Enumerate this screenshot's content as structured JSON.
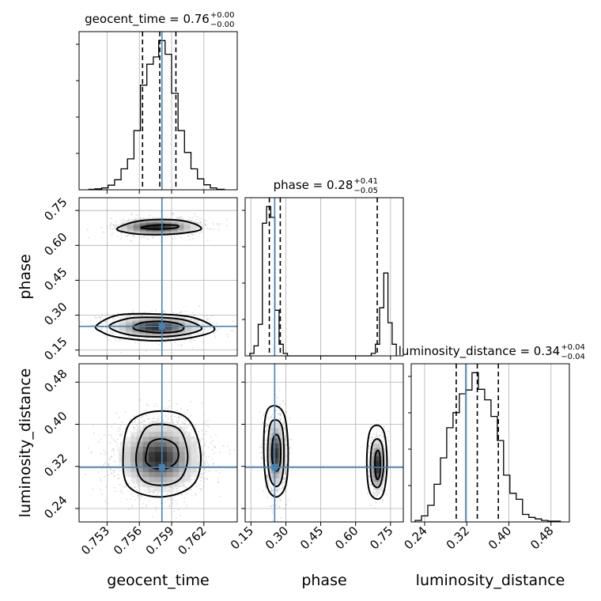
{
  "chart_data": {
    "type": "corner",
    "parameters": [
      "geocent_time",
      "phase",
      "luminosity_distance"
    ],
    "truth_color": "#4682b4",
    "ticks": {
      "geocent_time": [
        "0.753",
        "0.756",
        "0.759",
        "0.762"
      ],
      "phase": [
        "0.15",
        "0.30",
        "0.45",
        "0.60",
        "0.75"
      ],
      "luminosity_distance": [
        "0.24",
        "0.32",
        "0.40",
        "0.48"
      ]
    },
    "ranges": {
      "geocent_time": [
        0.7504,
        0.7651
      ],
      "phase": [
        0.125,
        0.805
      ],
      "luminosity_distance": [
        0.2145,
        0.5149
      ]
    },
    "truths": {
      "geocent_time": 0.7581,
      "phase": 0.252,
      "luminosity_distance": 0.318
    },
    "quantiles": {
      "geocent_time": [
        0.7563,
        0.7579,
        0.7594
      ],
      "phase": [
        0.229,
        0.276,
        0.693
      ],
      "luminosity_distance": [
        0.3,
        0.34,
        0.38
      ]
    },
    "titles": [
      {
        "param": "geocent_time",
        "name": "geocent_time",
        "value": "0.76",
        "plus": "+0.00",
        "minus": "−0.00"
      },
      {
        "param": "phase",
        "name": "phase",
        "value": "0.28",
        "plus": "+0.41",
        "minus": "−0.05"
      },
      {
        "param": "luminosity_distance",
        "name": "luminosity_distance",
        "value": "0.34",
        "plus": "+0.04",
        "minus": "−0.04"
      }
    ],
    "histograms": {
      "geocent_time": {
        "edges": [
          0.7513,
          0.7519,
          0.7525,
          0.7531,
          0.7537,
          0.7543,
          0.7549,
          0.7555,
          0.7561,
          0.7567,
          0.7573,
          0.7578,
          0.7584,
          0.759,
          0.7596,
          0.7602,
          0.7608,
          0.7614,
          0.762,
          0.7626,
          0.7632,
          0.7639
        ],
        "counts": [
          1,
          2,
          4,
          10,
          22,
          46,
          68,
          130,
          230,
          276,
          292,
          328,
          298,
          212,
          130,
          82,
          46,
          24,
          11,
          4,
          1
        ]
      },
      "phase": {
        "edges": [
          0.145,
          0.163,
          0.181,
          0.199,
          0.217,
          0.235,
          0.253,
          0.271,
          0.289,
          0.307,
          0.325,
          0.343,
          0.361,
          0.379,
          0.397,
          0.415,
          0.433,
          0.451,
          0.469,
          0.487,
          0.505,
          0.523,
          0.541,
          0.559,
          0.577,
          0.595,
          0.613,
          0.631,
          0.649,
          0.667,
          0.685,
          0.703,
          0.721,
          0.739,
          0.757,
          0.775
        ],
        "counts": [
          3,
          12,
          38,
          160,
          180,
          167,
          55,
          14,
          3,
          0,
          0,
          0,
          0,
          0,
          0,
          0,
          0,
          0,
          0,
          0,
          0,
          0,
          0,
          0,
          0,
          0,
          0,
          0,
          0,
          3,
          14,
          58,
          100,
          40,
          14
        ]
      },
      "luminosity_distance": {
        "edges": [
          0.222,
          0.234,
          0.246,
          0.258,
          0.27,
          0.282,
          0.294,
          0.306,
          0.318,
          0.33,
          0.342,
          0.354,
          0.366,
          0.378,
          0.39,
          0.402,
          0.414,
          0.426,
          0.438,
          0.45,
          0.462,
          0.474,
          0.486,
          0.498
        ],
        "counts": [
          2,
          8,
          22,
          50,
          85,
          125,
          145,
          170,
          175,
          198,
          176,
          162,
          140,
          108,
          62,
          38,
          30,
          10,
          6,
          4,
          2,
          1,
          1
        ]
      }
    },
    "scatter_2d": [
      {
        "x": "geocent_time",
        "y": "phase",
        "blobs": [
          {
            "cx": 0.7578,
            "cy": 0.25,
            "sx": 0.0023,
            "sy": 0.028,
            "rho": -0.15,
            "n": 1400
          },
          {
            "cx": 0.7578,
            "cy": 0.68,
            "sx": 0.0022,
            "sy": 0.022,
            "rho": 0.1,
            "n": 600
          }
        ],
        "contours": [
          [
            [
              0.752,
              0.255
            ],
            [
              0.754,
              0.3
            ],
            [
              0.7575,
              0.305
            ],
            [
              0.761,
              0.29
            ],
            [
              0.763,
              0.24
            ],
            [
              0.761,
              0.205
            ],
            [
              0.7575,
              0.19
            ],
            [
              0.754,
              0.205
            ],
            [
              0.7525,
              0.228
            ]
          ],
          [
            [
              0.7532,
              0.252
            ],
            [
              0.755,
              0.286
            ],
            [
              0.7578,
              0.29
            ],
            [
              0.7603,
              0.278
            ],
            [
              0.7618,
              0.242
            ],
            [
              0.76,
              0.215
            ],
            [
              0.7575,
              0.207
            ],
            [
              0.7548,
              0.218
            ]
          ],
          [
            [
              0.7555,
              0.252
            ],
            [
              0.7565,
              0.27
            ],
            [
              0.7585,
              0.272
            ],
            [
              0.76,
              0.256
            ],
            [
              0.7598,
              0.232
            ],
            [
              0.7578,
              0.224
            ],
            [
              0.7558,
              0.236
            ]
          ],
          [
            [
              0.754,
              0.675
            ],
            [
              0.756,
              0.705
            ],
            [
              0.759,
              0.71
            ],
            [
              0.761,
              0.695
            ],
            [
              0.7617,
              0.668
            ],
            [
              0.7595,
              0.65
            ],
            [
              0.7565,
              0.647
            ],
            [
              0.7545,
              0.658
            ]
          ],
          [
            [
              0.7563,
              0.679
            ],
            [
              0.7578,
              0.688
            ],
            [
              0.7595,
              0.686
            ],
            [
              0.7594,
              0.675
            ],
            [
              0.7578,
              0.67
            ],
            [
              0.7564,
              0.673
            ]
          ]
        ]
      },
      {
        "x": "geocent_time",
        "y": "luminosity_distance",
        "blobs": [
          {
            "cx": 0.758,
            "cy": 0.338,
            "sx": 0.0021,
            "sy": 0.036,
            "rho": 0.0,
            "n": 2200
          }
        ],
        "contours": [
          [
            [
              0.7545,
              0.345
            ],
            [
              0.7552,
              0.405
            ],
            [
              0.7578,
              0.425
            ],
            [
              0.7605,
              0.41
            ],
            [
              0.7617,
              0.345
            ],
            [
              0.761,
              0.285
            ],
            [
              0.758,
              0.262
            ],
            [
              0.755,
              0.282
            ]
          ],
          [
            [
              0.7557,
              0.34
            ],
            [
              0.7565,
              0.39
            ],
            [
              0.758,
              0.4
            ],
            [
              0.7598,
              0.388
            ],
            [
              0.7605,
              0.338
            ],
            [
              0.7598,
              0.296
            ],
            [
              0.758,
              0.284
            ],
            [
              0.7562,
              0.296
            ]
          ],
          [
            [
              0.7566,
              0.34
            ],
            [
              0.757,
              0.365
            ],
            [
              0.7582,
              0.372
            ],
            [
              0.7594,
              0.36
            ],
            [
              0.7596,
              0.335
            ],
            [
              0.7588,
              0.318
            ],
            [
              0.7575,
              0.316
            ],
            [
              0.7567,
              0.326
            ]
          ]
        ]
      },
      {
        "x": "phase",
        "y": "luminosity_distance",
        "blobs": [
          {
            "cx": 0.258,
            "cy": 0.345,
            "sx": 0.022,
            "sy": 0.036,
            "rho": 0.0,
            "n": 1400
          },
          {
            "cx": 0.695,
            "cy": 0.323,
            "sx": 0.02,
            "sy": 0.03,
            "rho": 0.0,
            "n": 500
          }
        ],
        "contours": [
          [
            [
              0.205,
              0.35
            ],
            [
              0.215,
              0.42
            ],
            [
              0.255,
              0.435
            ],
            [
              0.295,
              0.415
            ],
            [
              0.31,
              0.35
            ],
            [
              0.3,
              0.285
            ],
            [
              0.26,
              0.262
            ],
            [
              0.22,
              0.282
            ]
          ],
          [
            [
              0.222,
              0.345
            ],
            [
              0.232,
              0.398
            ],
            [
              0.26,
              0.408
            ],
            [
              0.285,
              0.392
            ],
            [
              0.292,
              0.34
            ],
            [
              0.282,
              0.295
            ],
            [
              0.258,
              0.282
            ],
            [
              0.232,
              0.298
            ]
          ],
          [
            [
              0.24,
              0.34
            ],
            [
              0.245,
              0.372
            ],
            [
              0.262,
              0.38
            ],
            [
              0.276,
              0.365
            ],
            [
              0.277,
              0.33
            ],
            [
              0.265,
              0.312
            ],
            [
              0.248,
              0.318
            ]
          ],
          [
            [
              0.648,
              0.33
            ],
            [
              0.66,
              0.385
            ],
            [
              0.695,
              0.398
            ],
            [
              0.725,
              0.38
            ],
            [
              0.735,
              0.32
            ],
            [
              0.72,
              0.27
            ],
            [
              0.69,
              0.258
            ],
            [
              0.658,
              0.275
            ]
          ],
          [
            [
              0.664,
              0.325
            ],
            [
              0.672,
              0.362
            ],
            [
              0.695,
              0.372
            ],
            [
              0.715,
              0.358
            ],
            [
              0.72,
              0.318
            ],
            [
              0.708,
              0.287
            ],
            [
              0.69,
              0.28
            ],
            [
              0.67,
              0.292
            ]
          ],
          [
            [
              0.683,
              0.325
            ],
            [
              0.687,
              0.345
            ],
            [
              0.698,
              0.35
            ],
            [
              0.705,
              0.338
            ],
            [
              0.705,
              0.308
            ],
            [
              0.697,
              0.296
            ],
            [
              0.688,
              0.3
            ]
          ]
        ]
      }
    ]
  }
}
